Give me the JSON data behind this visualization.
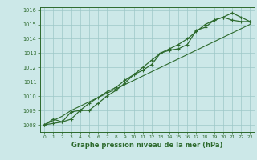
{
  "x": [
    0,
    1,
    2,
    3,
    4,
    5,
    6,
    7,
    8,
    9,
    10,
    11,
    12,
    13,
    14,
    15,
    16,
    17,
    18,
    19,
    20,
    21,
    22,
    23
  ],
  "line1": [
    1008.0,
    1008.4,
    1008.2,
    1008.4,
    1009.0,
    1009.5,
    1009.9,
    1010.3,
    1010.6,
    1011.1,
    1011.5,
    1011.8,
    1012.2,
    1013.0,
    1013.2,
    1013.3,
    1013.6,
    1014.6,
    1014.8,
    1015.3,
    1015.5,
    1015.3,
    1015.2,
    1015.2
  ],
  "line2": [
    1008.0,
    1008.1,
    1008.2,
    1008.9,
    1009.0,
    1009.0,
    1009.5,
    1010.0,
    1010.4,
    1010.9,
    1011.5,
    1012.0,
    1012.5,
    1013.0,
    1013.3,
    1013.6,
    1014.0,
    1014.5,
    1015.0,
    1015.3,
    1015.5,
    1015.8,
    1015.5,
    1015.2
  ],
  "trend": [
    1008.0,
    1008.3,
    1008.6,
    1009.0,
    1009.3,
    1009.6,
    1009.9,
    1010.2,
    1010.5,
    1010.8,
    1011.1,
    1011.4,
    1011.7,
    1012.0,
    1012.3,
    1012.6,
    1012.9,
    1013.2,
    1013.5,
    1013.8,
    1014.1,
    1014.4,
    1014.7,
    1015.0
  ],
  "line_color": "#2d6a2d",
  "bg_color": "#cce8e8",
  "grid_color": "#9dc8c8",
  "xlabel": "Graphe pression niveau de la mer (hPa)",
  "ylim": [
    1007.5,
    1016.2
  ],
  "xlim": [
    -0.5,
    23.5
  ],
  "yticks": [
    1008,
    1009,
    1010,
    1011,
    1012,
    1013,
    1014,
    1015,
    1016
  ],
  "xticks": [
    0,
    1,
    2,
    3,
    4,
    5,
    6,
    7,
    8,
    9,
    10,
    11,
    12,
    13,
    14,
    15,
    16,
    17,
    18,
    19,
    20,
    21,
    22,
    23
  ]
}
